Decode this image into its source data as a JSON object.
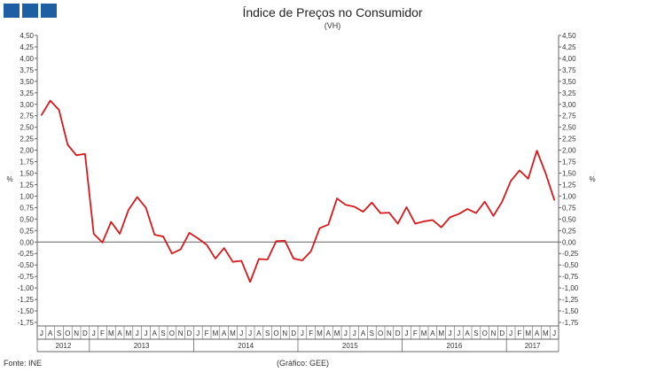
{
  "header": {
    "title": "Índice de Preços no Consumidor",
    "subtitle": "(VH)"
  },
  "footer": {
    "source": "Fonte: INE",
    "credit": "(Gráfico: GEE)"
  },
  "colors": {
    "logo": "#1e5fa4",
    "series": "#d7191c",
    "axis": "#666666"
  },
  "chart_data": {
    "type": "line",
    "title": "Índice de Preços no Consumidor",
    "subtitle": "(VH)",
    "ylabel_left": "%",
    "ylabel_right": "%",
    "ylim": [
      -1.75,
      4.5
    ],
    "ytick_step": 0.25,
    "yticks": [
      "4,50",
      "4,25",
      "4,00",
      "3,75",
      "3,50",
      "3,25",
      "3,00",
      "2,75",
      "2,50",
      "2,25",
      "2,00",
      "1,75",
      "1,50",
      "1,25",
      "1,00",
      "0,75",
      "0,50",
      "0,25",
      "0,00",
      "-0,25",
      "-0,50",
      "-0,75",
      "-1,00",
      "-1,25",
      "-1,50",
      "-1,75"
    ],
    "grid": false,
    "legend": "none",
    "months": [
      "J",
      "A",
      "S",
      "O",
      "N",
      "D",
      "J",
      "F",
      "M",
      "A",
      "M",
      "J",
      "J",
      "A",
      "S",
      "O",
      "N",
      "D",
      "J",
      "F",
      "M",
      "A",
      "M",
      "J",
      "J",
      "A",
      "S",
      "O",
      "N",
      "D",
      "J",
      "F",
      "M",
      "A",
      "M",
      "J",
      "J",
      "A",
      "S",
      "O",
      "N",
      "D",
      "J",
      "F",
      "M",
      "A",
      "M",
      "J",
      "J",
      "A",
      "S",
      "O",
      "N",
      "D",
      "J",
      "F",
      "M",
      "A",
      "M",
      "J"
    ],
    "years": [
      {
        "label": "2012",
        "start": 0,
        "count": 6
      },
      {
        "label": "2013",
        "start": 6,
        "count": 12
      },
      {
        "label": "2014",
        "start": 18,
        "count": 12
      },
      {
        "label": "2015",
        "start": 30,
        "count": 12
      },
      {
        "label": "2016",
        "start": 42,
        "count": 12
      },
      {
        "label": "2017",
        "start": 54,
        "count": 6
      }
    ],
    "series": [
      {
        "values": [
          2.77,
          3.08,
          2.88,
          2.12,
          1.89,
          1.92,
          0.18,
          -0.01,
          0.44,
          0.18,
          0.7,
          0.98,
          0.75,
          0.16,
          0.12,
          -0.25,
          -0.16,
          0.2,
          0.08,
          -0.06,
          -0.36,
          -0.13,
          -0.43,
          -0.41,
          -0.87,
          -0.37,
          -0.38,
          0.02,
          0.03,
          -0.36,
          -0.4,
          -0.2,
          0.3,
          0.38,
          0.95,
          0.81,
          0.77,
          0.66,
          0.86,
          0.63,
          0.64,
          0.4,
          0.76,
          0.4,
          0.45,
          0.48,
          0.32,
          0.54,
          0.61,
          0.72,
          0.63,
          0.88,
          0.57,
          0.88,
          1.33,
          1.56,
          1.38,
          1.99,
          1.5,
          0.92
        ]
      }
    ]
  }
}
